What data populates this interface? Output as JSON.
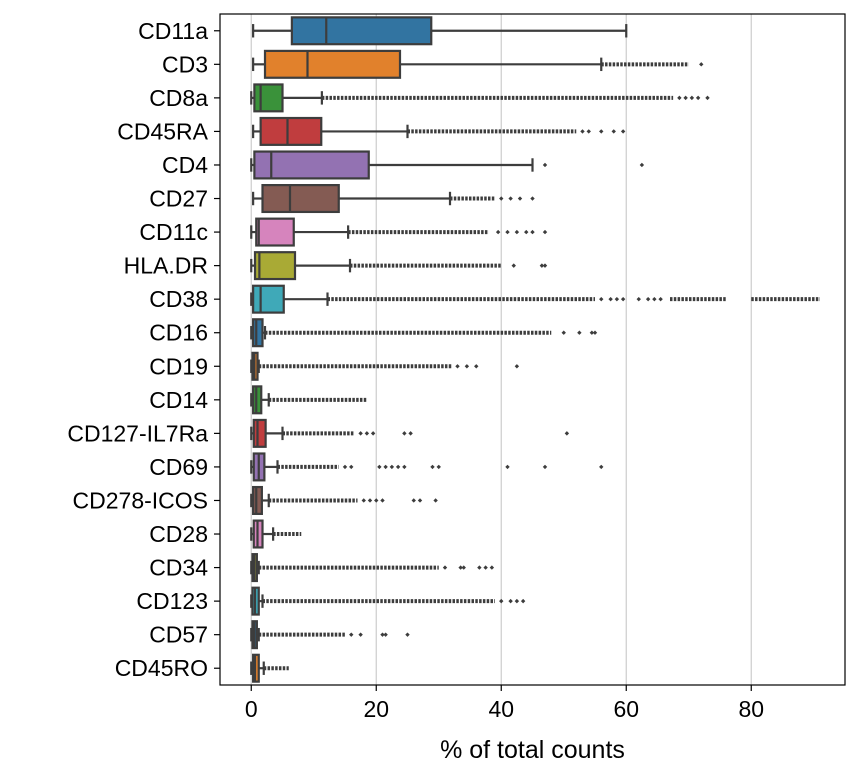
{
  "chart_data": {
    "type": "box",
    "xlabel": "% of total counts",
    "ylabel": "",
    "xlim": [
      -5,
      95
    ],
    "xticks": [
      0,
      20,
      40,
      60,
      80
    ],
    "grid": "vertical",
    "categories": [
      "CD11a",
      "CD3",
      "CD8a",
      "CD45RA",
      "CD4",
      "CD27",
      "CD11c",
      "HLA.DR",
      "CD38",
      "CD16",
      "CD19",
      "CD14",
      "CD127-IL7Ra",
      "CD69",
      "CD278-ICOS",
      "CD28",
      "CD34",
      "CD123",
      "CD57",
      "CD45RO"
    ],
    "boxes": [
      {
        "name": "CD11a",
        "color": "#3274a1",
        "q1": 6.5,
        "median": 12,
        "q3": 28.8,
        "whisker_low": 0.3,
        "whisker_high": 60,
        "flier_runs": [],
        "fliers": []
      },
      {
        "name": "CD3",
        "color": "#e1812c",
        "q1": 2.2,
        "median": 9,
        "q3": 23.8,
        "whisker_low": 0.3,
        "whisker_high": 56,
        "flier_runs": [
          [
            56,
            70
          ]
        ],
        "fliers": [
          72
        ]
      },
      {
        "name": "CD8a",
        "color": "#3a923a",
        "q1": 0.5,
        "median": 1.5,
        "q3": 5,
        "whisker_low": 0,
        "whisker_high": 11.3,
        "flier_runs": [
          [
            11.3,
            67.5
          ]
        ],
        "fliers": [
          68.5,
          69.5,
          70.5,
          71.5,
          73
        ]
      },
      {
        "name": "CD45RA",
        "color": "#c03d3e",
        "q1": 1.5,
        "median": 5.8,
        "q3": 11.2,
        "whisker_low": 0.3,
        "whisker_high": 25,
        "flier_runs": [
          [
            25,
            52
          ]
        ],
        "fliers": [
          53,
          54,
          56,
          58,
          59.5
        ]
      },
      {
        "name": "CD4",
        "color": "#9372b2",
        "q1": 0.5,
        "median": 3.2,
        "q3": 18.8,
        "whisker_low": 0,
        "whisker_high": 45,
        "flier_runs": [],
        "fliers": [
          47,
          62.5
        ]
      },
      {
        "name": "CD27",
        "color": "#845b53",
        "q1": 1.8,
        "median": 6.2,
        "q3": 14,
        "whisker_low": 0.3,
        "whisker_high": 31.8,
        "flier_runs": [
          [
            31.8,
            39
          ]
        ],
        "fliers": [
          40,
          41.5,
          43,
          45
        ]
      },
      {
        "name": "CD11c",
        "color": "#d684bd",
        "q1": 0.8,
        "median": 1.2,
        "q3": 6.8,
        "whisker_low": 0,
        "whisker_high": 15.5,
        "flier_runs": [
          [
            15.5,
            38
          ]
        ],
        "fliers": [
          39.5,
          41,
          42.5,
          44,
          45,
          47
        ]
      },
      {
        "name": "HLA.DR",
        "color": "#a9aa35",
        "q1": 0.6,
        "median": 1.3,
        "q3": 7,
        "whisker_low": 0,
        "whisker_high": 15.8,
        "flier_runs": [
          [
            15.8,
            40
          ]
        ],
        "fliers": [
          42,
          46.5,
          47
        ]
      },
      {
        "name": "CD38",
        "color": "#3fa9b8",
        "q1": 0.3,
        "median": 1.5,
        "q3": 5.2,
        "whisker_low": 0,
        "whisker_high": 12.2,
        "flier_runs": [
          [
            12.2,
            55
          ],
          [
            67,
            76
          ],
          [
            80,
            91
          ]
        ],
        "fliers": [
          56,
          57.5,
          58.5,
          59.5,
          62,
          63.5,
          64.5,
          65.5
        ]
      },
      {
        "name": "CD16",
        "color": "#3274a1",
        "q1": 0.3,
        "median": 0.8,
        "q3": 1.8,
        "whisker_low": 0,
        "whisker_high": 2.2,
        "flier_runs": [
          [
            2.2,
            48
          ]
        ],
        "fliers": [
          50,
          52.5,
          54.5,
          55
        ]
      },
      {
        "name": "CD19",
        "color": "#e1812c",
        "q1": 0.2,
        "median": 0.5,
        "q3": 1,
        "whisker_low": 0,
        "whisker_high": 1.2,
        "flier_runs": [
          [
            1.2,
            32
          ]
        ],
        "fliers": [
          33,
          34.5,
          36,
          42.5
        ]
      },
      {
        "name": "CD14",
        "color": "#3a923a",
        "q1": 0.3,
        "median": 0.8,
        "q3": 1.6,
        "whisker_low": 0,
        "whisker_high": 2.8,
        "flier_runs": [
          [
            2.8,
            18.5
          ]
        ],
        "fliers": []
      },
      {
        "name": "CD127-IL7Ra",
        "color": "#c03d3e",
        "q1": 0.4,
        "median": 1,
        "q3": 2.3,
        "whisker_low": 0,
        "whisker_high": 5,
        "flier_runs": [
          [
            5,
            16.5
          ]
        ],
        "fliers": [
          17.5,
          18.5,
          19.5,
          24.5,
          25.5,
          50.5
        ]
      },
      {
        "name": "CD69",
        "color": "#9372b2",
        "q1": 0.4,
        "median": 1.2,
        "q3": 2.1,
        "whisker_low": 0,
        "whisker_high": 4.2,
        "flier_runs": [
          [
            4.2,
            14
          ]
        ],
        "fliers": [
          15,
          16,
          20.5,
          21.5,
          22.5,
          23.5,
          24.5,
          29,
          30,
          41,
          47,
          56
        ]
      },
      {
        "name": "CD278-ICOS",
        "color": "#845b53",
        "q1": 0.3,
        "median": 0.8,
        "q3": 1.7,
        "whisker_low": 0,
        "whisker_high": 2.8,
        "flier_runs": [
          [
            2.8,
            17
          ]
        ],
        "fliers": [
          18,
          19,
          20,
          21,
          26,
          27,
          29.5
        ]
      },
      {
        "name": "CD28",
        "color": "#d684bd",
        "q1": 0.4,
        "median": 1,
        "q3": 1.8,
        "whisker_low": 0,
        "whisker_high": 3.5,
        "flier_runs": [
          [
            3.5,
            8
          ]
        ],
        "fliers": []
      },
      {
        "name": "CD34",
        "color": "#a9aa35",
        "q1": 0.2,
        "median": 0.5,
        "q3": 0.9,
        "whisker_low": 0,
        "whisker_high": 1.2,
        "flier_runs": [
          [
            1.2,
            30
          ]
        ],
        "fliers": [
          31,
          33.5,
          34,
          36.5,
          37.5,
          38.5
        ]
      },
      {
        "name": "CD123",
        "color": "#3fa9b8",
        "q1": 0.2,
        "median": 0.6,
        "q3": 1.2,
        "whisker_low": 0,
        "whisker_high": 1.8,
        "flier_runs": [
          [
            1.8,
            39
          ]
        ],
        "fliers": [
          40,
          41.5,
          42.5,
          43.5
        ]
      },
      {
        "name": "CD57",
        "color": "#3274a1",
        "q1": 0.2,
        "median": 0.5,
        "q3": 0.9,
        "whisker_low": 0,
        "whisker_high": 1.2,
        "flier_runs": [
          [
            1.2,
            15
          ]
        ],
        "fliers": [
          16,
          17.5,
          21,
          21.5,
          25
        ]
      },
      {
        "name": "CD45RO",
        "color": "#e1812c",
        "q1": 0.3,
        "median": 0.6,
        "q3": 1.2,
        "whisker_low": 0,
        "whisker_high": 2,
        "flier_runs": [
          [
            2,
            6
          ]
        ],
        "fliers": []
      }
    ]
  }
}
